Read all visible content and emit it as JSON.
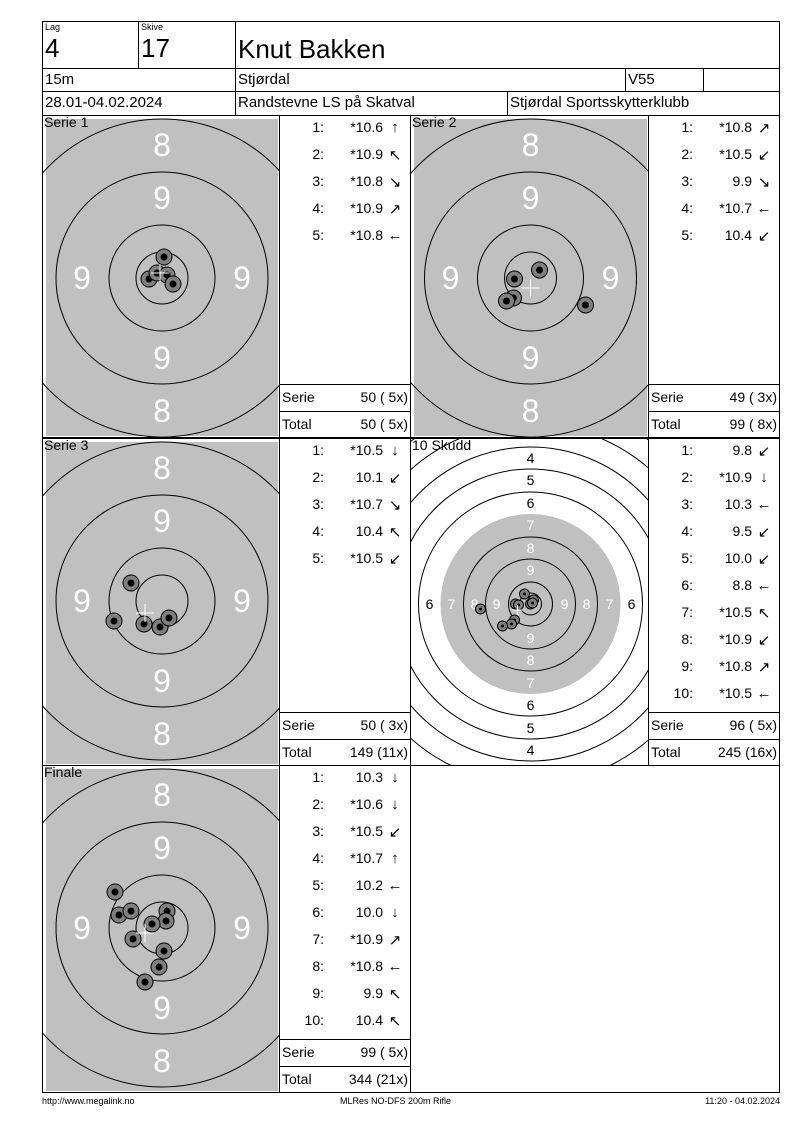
{
  "header": {
    "lag_label": "Lag",
    "lag": "4",
    "skive_label": "Skive",
    "skive": "17",
    "name": "Knut Bakken",
    "distance": "15m",
    "club_short": "Stjørdal",
    "class": "V55",
    "dates": "28.01-04.02.2024",
    "event": "Randstevne LS på Skatval",
    "organizer": "Stjørdal Sportsskytterklubb"
  },
  "target_numbers": {
    "series": [
      "8",
      "9"
    ],
    "total": [
      "4",
      "5",
      "6",
      "7",
      "8",
      "9"
    ]
  },
  "panels": [
    {
      "title": "Serie 1",
      "serie_label": "Serie",
      "serie_value": "50 ( 5x)",
      "total_label": "Total",
      "total_value": "50 ( 5x)",
      "shots": [
        {
          "n": "1:",
          "value": "*10.6",
          "dir": "up"
        },
        {
          "n": "2:",
          "value": "*10.9",
          "dir": "up-left"
        },
        {
          "n": "3:",
          "value": "*10.8",
          "dir": "down-right"
        },
        {
          "n": "4:",
          "value": "*10.9",
          "dir": "up-right"
        },
        {
          "n": "5:",
          "value": "*10.8",
          "dir": "left"
        }
      ]
    },
    {
      "title": "Serie 2",
      "serie_label": "Serie",
      "serie_value": "49 ( 3x)",
      "total_label": "Total",
      "total_value": "99 ( 8x)",
      "shots": [
        {
          "n": "1:",
          "value": "*10.8",
          "dir": "up-right"
        },
        {
          "n": "2:",
          "value": "*10.5",
          "dir": "down-left"
        },
        {
          "n": "3:",
          "value": "9.9",
          "dir": "down-right"
        },
        {
          "n": "4:",
          "value": "*10.7",
          "dir": "left"
        },
        {
          "n": "5:",
          "value": "10.4",
          "dir": "down-left"
        }
      ]
    },
    {
      "title": "Serie 3",
      "serie_label": "Serie",
      "serie_value": "50 ( 3x)",
      "total_label": "Total",
      "total_value": "149 (11x)",
      "shots": [
        {
          "n": "1:",
          "value": "*10.5",
          "dir": "down"
        },
        {
          "n": "2:",
          "value": "10.1",
          "dir": "down-left"
        },
        {
          "n": "3:",
          "value": "*10.7",
          "dir": "down-right"
        },
        {
          "n": "4:",
          "value": "10.4",
          "dir": "up-left"
        },
        {
          "n": "5:",
          "value": "*10.5",
          "dir": "down-left"
        }
      ]
    },
    {
      "title": "10 Skudd",
      "serie_label": "Serie",
      "serie_value": "96 ( 5x)",
      "total_label": "Total",
      "total_value": "245 (16x)",
      "shots": [
        {
          "n": "1:",
          "value": "9.8",
          "dir": "down-left"
        },
        {
          "n": "2:",
          "value": "*10.9",
          "dir": "down"
        },
        {
          "n": "3:",
          "value": "10.3",
          "dir": "left"
        },
        {
          "n": "4:",
          "value": "9.5",
          "dir": "down-left"
        },
        {
          "n": "5:",
          "value": "10.0",
          "dir": "down-left"
        },
        {
          "n": "6:",
          "value": "8.8",
          "dir": "left"
        },
        {
          "n": "7:",
          "value": "*10.5",
          "dir": "up-left"
        },
        {
          "n": "8:",
          "value": "*10.9",
          "dir": "down-left"
        },
        {
          "n": "9:",
          "value": "*10.8",
          "dir": "up-right"
        },
        {
          "n": "10:",
          "value": "*10.5",
          "dir": "left"
        }
      ]
    },
    {
      "title": "Finale",
      "serie_label": "Serie",
      "serie_value": "99 ( 5x)",
      "total_label": "Total",
      "total_value": "344 (21x)",
      "shots": [
        {
          "n": "1:",
          "value": "10.3",
          "dir": "down"
        },
        {
          "n": "2:",
          "value": "*10.6",
          "dir": "down"
        },
        {
          "n": "3:",
          "value": "*10.5",
          "dir": "down-left"
        },
        {
          "n": "4:",
          "value": "*10.7",
          "dir": "up"
        },
        {
          "n": "5:",
          "value": "10.2",
          "dir": "left"
        },
        {
          "n": "6:",
          "value": "10.0",
          "dir": "down"
        },
        {
          "n": "7:",
          "value": "*10.9",
          "dir": "up-right"
        },
        {
          "n": "8:",
          "value": "*10.8",
          "dir": "left"
        },
        {
          "n": "9:",
          "value": "9.9",
          "dir": "up-left"
        },
        {
          "n": "10:",
          "value": "10.4",
          "dir": "up-left"
        }
      ]
    }
  ],
  "footer": {
    "left": "http://www.megalink.no",
    "center": "MLRes NO-DFS 200m Rifle",
    "right": "11:20 - 04.02.2024"
  },
  "colors": {
    "target_gray": "#c0c0c0",
    "shot_gray": "#808080"
  }
}
